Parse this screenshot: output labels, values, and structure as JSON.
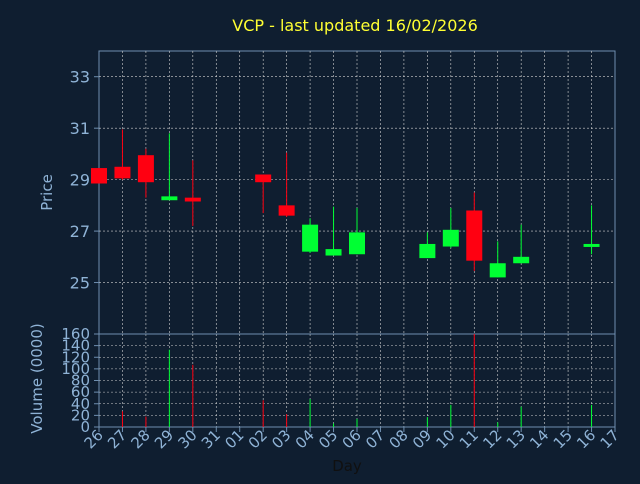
{
  "title": "VCP - last updated 16/02/2026",
  "colors": {
    "background": "#0f1e30",
    "title": "#ffff33",
    "axis_text": "#8fb3d6",
    "axis_line": "#6f8fb0",
    "grid": "#d0d0d0",
    "up": "#00ff33",
    "down": "#ff0011"
  },
  "chart_data": [
    {
      "type": "candlestick",
      "ylabel": "Price",
      "ylim": [
        23,
        34
      ],
      "yticks": [
        25,
        27,
        29,
        31,
        33
      ],
      "x_tick_labels": [
        "26",
        "27",
        "28",
        "29",
        "30",
        "31",
        "01",
        "02",
        "03",
        "04",
        "05",
        "06",
        "07",
        "08",
        "09",
        "10",
        "11",
        "12",
        "13",
        "14",
        "15",
        "16",
        "17"
      ],
      "grid": true,
      "candles": [
        {
          "day": "26",
          "open": 29.45,
          "close": 28.85,
          "high": 29.45,
          "low": 28.85
        },
        {
          "day": "27",
          "open": 29.5,
          "close": 29.05,
          "high": 30.95,
          "low": 29.0
        },
        {
          "day": "28",
          "open": 29.95,
          "close": 28.9,
          "high": 30.2,
          "low": 28.3
        },
        {
          "day": "29",
          "open": 28.2,
          "close": 28.35,
          "high": 30.8,
          "low": 28.2
        },
        {
          "day": "30",
          "open": 28.3,
          "close": 28.15,
          "high": 29.75,
          "low": 27.2
        },
        {
          "day": "02",
          "open": 29.2,
          "close": 28.9,
          "high": 29.2,
          "low": 27.7
        },
        {
          "day": "03",
          "open": 28.0,
          "close": 27.6,
          "high": 30.05,
          "low": 27.55
        },
        {
          "day": "04",
          "open": 26.2,
          "close": 27.25,
          "high": 27.5,
          "low": 26.15
        },
        {
          "day": "05",
          "open": 26.05,
          "close": 26.3,
          "high": 27.95,
          "low": 26.05
        },
        {
          "day": "06",
          "open": 26.1,
          "close": 26.95,
          "high": 27.9,
          "low": 26.1
        },
        {
          "day": "09",
          "open": 25.95,
          "close": 26.5,
          "high": 26.95,
          "low": 25.95
        },
        {
          "day": "10",
          "open": 26.4,
          "close": 27.05,
          "high": 27.9,
          "low": 26.35
        },
        {
          "day": "11",
          "open": 27.8,
          "close": 25.85,
          "high": 28.5,
          "low": 25.45
        },
        {
          "day": "12",
          "open": 25.2,
          "close": 25.75,
          "high": 26.6,
          "low": 25.2
        },
        {
          "day": "13",
          "open": 25.75,
          "close": 26.0,
          "high": 27.25,
          "low": 25.75
        },
        {
          "day": "16",
          "open": 26.4,
          "close": 26.5,
          "high": 28.0,
          "low": 26.1
        }
      ]
    },
    {
      "type": "bar",
      "ylabel": "Volume (0000)",
      "xlabel": "Day",
      "ylim": [
        0,
        160
      ],
      "yticks": [
        0,
        20,
        40,
        60,
        80,
        100,
        120,
        140,
        160
      ],
      "bars": [
        {
          "day": "27",
          "value": 27,
          "dir": "down"
        },
        {
          "day": "28",
          "value": 18,
          "dir": "down"
        },
        {
          "day": "29",
          "value": 133,
          "dir": "up"
        },
        {
          "day": "30",
          "value": 107,
          "dir": "down"
        },
        {
          "day": "02",
          "value": 46,
          "dir": "down"
        },
        {
          "day": "03",
          "value": 22,
          "dir": "down"
        },
        {
          "day": "04",
          "value": 48,
          "dir": "up"
        },
        {
          "day": "05",
          "value": 6,
          "dir": "up"
        },
        {
          "day": "06",
          "value": 14,
          "dir": "up"
        },
        {
          "day": "09",
          "value": 17,
          "dir": "up"
        },
        {
          "day": "10",
          "value": 38,
          "dir": "up"
        },
        {
          "day": "11",
          "value": 160,
          "dir": "down"
        },
        {
          "day": "12",
          "value": 8,
          "dir": "up"
        },
        {
          "day": "13",
          "value": 35,
          "dir": "up"
        },
        {
          "day": "16",
          "value": 38,
          "dir": "up"
        }
      ]
    }
  ]
}
